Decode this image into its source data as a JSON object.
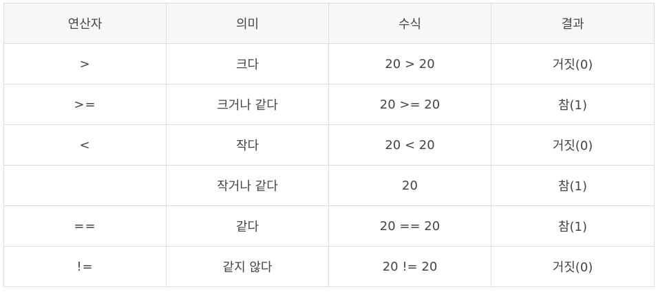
{
  "table": {
    "headers": [
      "연산자",
      "의미",
      "수식",
      "결과"
    ],
    "rows": [
      [
        "&gt;",
        "크다",
        "20 > 20",
        "거짓(0)"
      ],
      [
        ">=",
        "크거나 같다",
        "20 >= 20",
        "참(1)"
      ],
      [
        "<",
        "작다",
        "20 < 20",
        "거짓(0)"
      ],
      [
        "",
        "작거나 같다",
        "20",
        "참(1)"
      ],
      [
        "==",
        "같다",
        "20 == 20",
        "참(1)"
      ],
      [
        "!=",
        "같지 않다",
        "20 != 20",
        "거짓(0)"
      ]
    ]
  }
}
